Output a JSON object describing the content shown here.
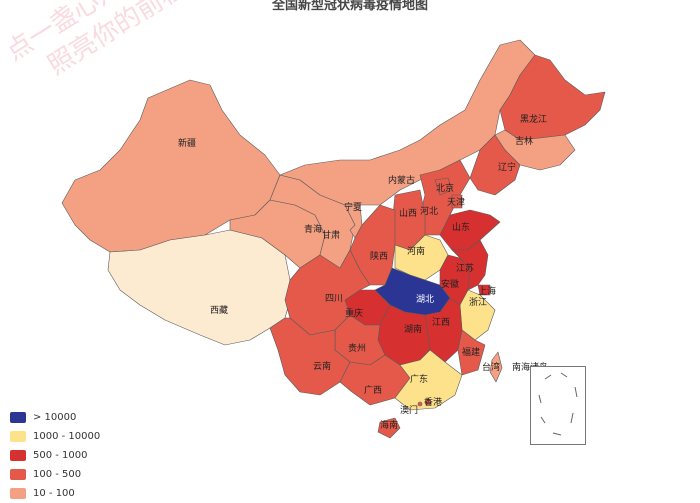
{
  "title": "全国新型冠状病毒疫情地图",
  "watermark": [
    "点一盏心灯，",
    "照亮你的前程"
  ],
  "legend": [
    {
      "label": "> 10000",
      "color": "#2b3593"
    },
    {
      "label": "1000 - 10000",
      "color": "#fde28b"
    },
    {
      "label": "500 - 1000",
      "color": "#d73030"
    },
    {
      "label": "100 - 500",
      "color": "#e5594a"
    },
    {
      "label": "10 - 100",
      "color": "#f4a083"
    }
  ],
  "extra_color": "#fdebd1",
  "provinces": {
    "xinjiang": "新疆",
    "xizang": "西藏",
    "qinghai": "青海",
    "gansu": "甘肃",
    "neimenggu": "内蒙古",
    "ningxia": "宁夏",
    "heilongjiang": "黑龙江",
    "jilin": "吉林",
    "liaoning": "辽宁",
    "beijing": "北京",
    "tianjin": "天津",
    "hebei": "河北",
    "shanxi": "山西",
    "shandong": "山东",
    "henan": "河南",
    "shaanxi": "陕西",
    "sichuan": "四川",
    "chongqing": "重庆",
    "hubei": "湖北",
    "anhui": "安徽",
    "jiangsu": "江苏",
    "shanghai": "上海",
    "zhejiang": "浙江",
    "jiangxi": "江西",
    "hunan": "湖南",
    "guizhou": "贵州",
    "yunnan": "云南",
    "guangxi": "广西",
    "guangdong": "广东",
    "fujian": "福建",
    "taiwan": "台湾",
    "hongkong": "香港",
    "macau": "澳门",
    "hainan": "海南",
    "nanhai": "南海诸岛"
  }
}
